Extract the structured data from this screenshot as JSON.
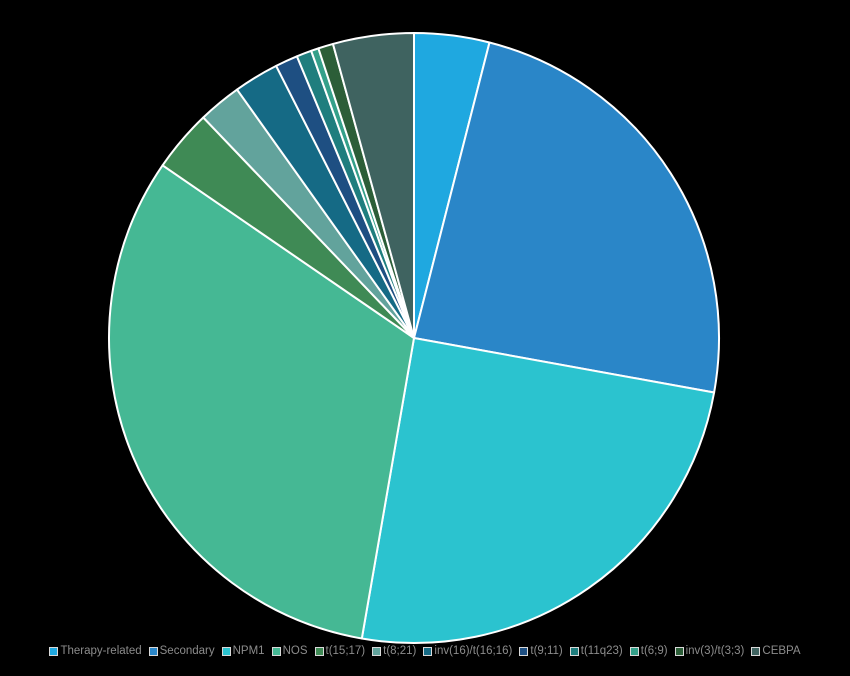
{
  "chart_data": {
    "type": "pie",
    "title": "",
    "legend_position": "bottom",
    "slices": [
      {
        "name": "Therapy-related",
        "value": 4.0,
        "color": "#1fa8e0"
      },
      {
        "name": "Secondary",
        "value": 24.0,
        "color": "#2a86c8"
      },
      {
        "name": "NPM1",
        "value": 25.0,
        "color": "#2bc3cf"
      },
      {
        "name": "NOS",
        "value": 32.0,
        "color": "#45b894"
      },
      {
        "name": "t(15;17)",
        "value": 3.3,
        "color": "#3f8a55"
      },
      {
        "name": "t(8;21)",
        "value": 2.3,
        "color": "#62a39c"
      },
      {
        "name": "inv(16)/t(16;16)",
        "value": 2.4,
        "color": "#156a85"
      },
      {
        "name": "t(9;11)",
        "value": 1.2,
        "color": "#1e4f82"
      },
      {
        "name": "t(11q23)",
        "value": 0.8,
        "color": "#1f7e7e"
      },
      {
        "name": "t(6;9)",
        "value": 0.4,
        "color": "#34a08a"
      },
      {
        "name": "inv(3)/t(3;3)",
        "value": 0.8,
        "color": "#2c5e38"
      },
      {
        "name": "CEBPA",
        "value": 4.3,
        "color": "#3f6360"
      }
    ]
  }
}
